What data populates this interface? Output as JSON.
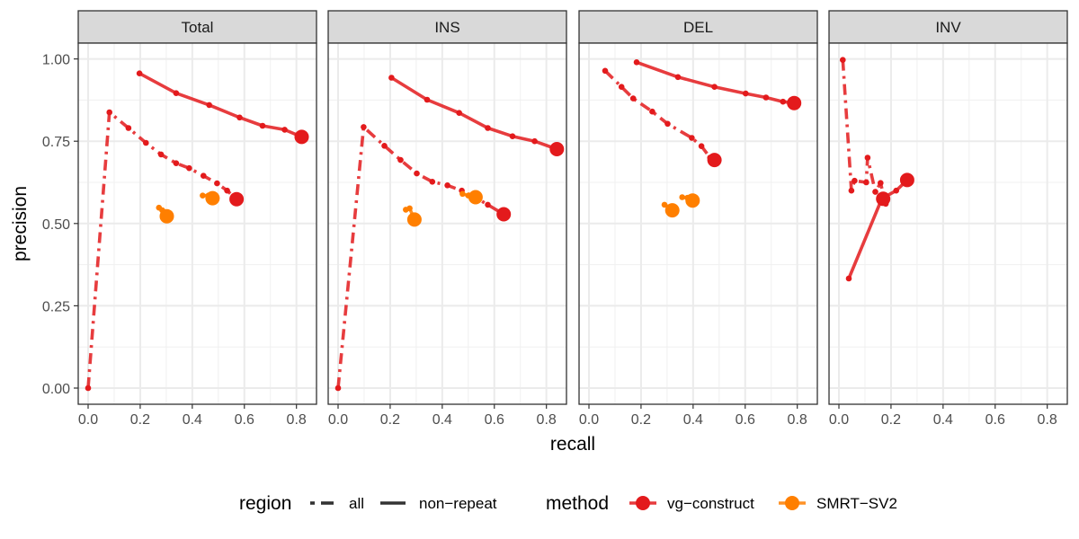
{
  "chart_data": {
    "type": "line",
    "facets": [
      "Total",
      "INS",
      "DEL",
      "INV"
    ],
    "xlabel": "recall",
    "ylabel": "precision",
    "xlim": [
      -0.04,
      0.88
    ],
    "ylim": [
      -0.05,
      1.05
    ],
    "x_ticks": [
      0.0,
      0.2,
      0.4,
      0.6,
      0.8
    ],
    "x_tick_labels": [
      "0.0",
      "0.2",
      "0.4",
      "0.6",
      "0.8"
    ],
    "y_ticks": [
      0.0,
      0.25,
      0.5,
      0.75,
      1.0
    ],
    "y_tick_labels": [
      "0.00",
      "0.25",
      "0.50",
      "0.75",
      "1.00"
    ],
    "grid": true,
    "legend": {
      "position": "bottom",
      "region_title": "region",
      "region_items": [
        {
          "label": "all",
          "dash": "dotdash"
        },
        {
          "label": "non−repeat",
          "dash": "solid"
        }
      ],
      "method_title": "method",
      "method_items": [
        {
          "label": "vg−construct",
          "color": "#e31a1c"
        },
        {
          "label": "SMRT−SV2",
          "color": "#ff7f00"
        }
      ]
    },
    "series": [
      {
        "facet": "Total",
        "method": "vg−construct",
        "region": "non−repeat",
        "points": [
          [
            0.197,
            0.956
          ],
          [
            0.338,
            0.896
          ],
          [
            0.465,
            0.86
          ],
          [
            0.582,
            0.822
          ],
          [
            0.67,
            0.797
          ],
          [
            0.755,
            0.785
          ],
          [
            0.82,
            0.763
          ]
        ]
      },
      {
        "facet": "Total",
        "method": "vg−construct",
        "region": "all",
        "points": [
          [
            0.0,
            0.0
          ],
          [
            0.082,
            0.838
          ],
          [
            0.155,
            0.79
          ],
          [
            0.222,
            0.745
          ],
          [
            0.28,
            0.71
          ],
          [
            0.338,
            0.683
          ],
          [
            0.388,
            0.668
          ],
          [
            0.443,
            0.645
          ],
          [
            0.495,
            0.622
          ],
          [
            0.534,
            0.6
          ],
          [
            0.57,
            0.574
          ]
        ]
      },
      {
        "facet": "Total",
        "method": "SMRT−SV2",
        "region": "non−repeat",
        "points": [
          [
            0.44,
            0.585
          ],
          [
            0.462,
            0.585
          ],
          [
            0.478,
            0.577
          ]
        ]
      },
      {
        "facet": "Total",
        "method": "SMRT−SV2",
        "region": "all",
        "points": [
          [
            0.272,
            0.548
          ],
          [
            0.285,
            0.54
          ],
          [
            0.302,
            0.522
          ]
        ]
      },
      {
        "facet": "INS",
        "method": "vg−construct",
        "region": "non−repeat",
        "points": [
          [
            0.205,
            0.943
          ],
          [
            0.342,
            0.876
          ],
          [
            0.465,
            0.836
          ],
          [
            0.575,
            0.79
          ],
          [
            0.67,
            0.765
          ],
          [
            0.755,
            0.75
          ],
          [
            0.84,
            0.726
          ]
        ]
      },
      {
        "facet": "INS",
        "method": "vg−construct",
        "region": "all",
        "points": [
          [
            0.0,
            0.0
          ],
          [
            0.098,
            0.793
          ],
          [
            0.178,
            0.736
          ],
          [
            0.24,
            0.693
          ],
          [
            0.302,
            0.652
          ],
          [
            0.362,
            0.627
          ],
          [
            0.42,
            0.616
          ],
          [
            0.475,
            0.6
          ],
          [
            0.525,
            0.58
          ],
          [
            0.575,
            0.557
          ],
          [
            0.636,
            0.528
          ]
        ]
      },
      {
        "facet": "INS",
        "method": "SMRT−SV2",
        "region": "non−repeat",
        "points": [
          [
            0.478,
            0.59
          ],
          [
            0.5,
            0.585
          ],
          [
            0.528,
            0.58
          ]
        ]
      },
      {
        "facet": "INS",
        "method": "SMRT−SV2",
        "region": "all",
        "points": [
          [
            0.26,
            0.542
          ],
          [
            0.275,
            0.546
          ],
          [
            0.293,
            0.512
          ]
        ]
      },
      {
        "facet": "DEL",
        "method": "vg−construct",
        "region": "non−repeat",
        "points": [
          [
            0.183,
            0.99
          ],
          [
            0.342,
            0.945
          ],
          [
            0.482,
            0.915
          ],
          [
            0.602,
            0.895
          ],
          [
            0.68,
            0.883
          ],
          [
            0.745,
            0.87
          ],
          [
            0.788,
            0.866
          ]
        ]
      },
      {
        "facet": "DEL",
        "method": "vg−construct",
        "region": "all",
        "points": [
          [
            0.062,
            0.964
          ],
          [
            0.125,
            0.915
          ],
          [
            0.17,
            0.88
          ],
          [
            0.243,
            0.84
          ],
          [
            0.302,
            0.803
          ],
          [
            0.395,
            0.76
          ],
          [
            0.432,
            0.735
          ],
          [
            0.465,
            0.7
          ],
          [
            0.482,
            0.693
          ]
        ]
      },
      {
        "facet": "DEL",
        "method": "SMRT−SV2",
        "region": "non−repeat",
        "points": [
          [
            0.358,
            0.58
          ],
          [
            0.378,
            0.578
          ],
          [
            0.398,
            0.57
          ]
        ]
      },
      {
        "facet": "DEL",
        "method": "SMRT−SV2",
        "region": "all",
        "points": [
          [
            0.29,
            0.557
          ],
          [
            0.31,
            0.55
          ],
          [
            0.32,
            0.54
          ]
        ]
      },
      {
        "facet": "INV",
        "method": "vg−construct",
        "region": "non−repeat",
        "points": [
          [
            0.038,
            0.333
          ],
          [
            0.165,
            0.576
          ],
          [
            0.22,
            0.6
          ],
          [
            0.262,
            0.632
          ]
        ]
      },
      {
        "facet": "INV",
        "method": "vg−construct",
        "region": "all",
        "points": [
          [
            0.015,
            0.997
          ],
          [
            0.048,
            0.6
          ],
          [
            0.06,
            0.63
          ],
          [
            0.105,
            0.625
          ],
          [
            0.11,
            0.7
          ],
          [
            0.14,
            0.596
          ],
          [
            0.16,
            0.623
          ],
          [
            0.18,
            0.56
          ],
          [
            0.17,
            0.575
          ]
        ]
      }
    ]
  }
}
